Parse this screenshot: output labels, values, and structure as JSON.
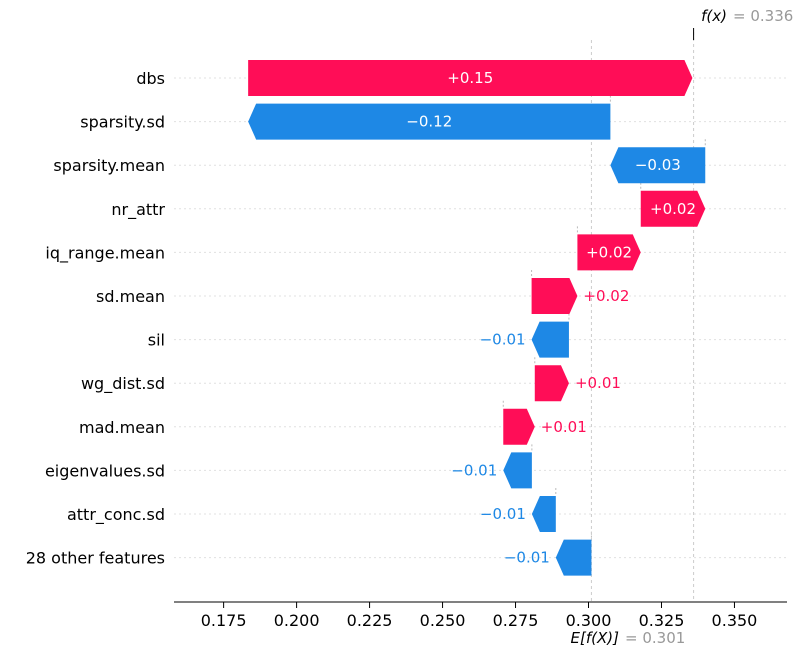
{
  "chart_data": {
    "type": "waterfall",
    "base_value": 0.301,
    "output_value": 0.336,
    "fx_label": "f(x)",
    "fx_value_text": "= 0.336",
    "ex_label": "E[f(X)]",
    "ex_value_text": "= 0.301",
    "xlim": [
      0.158,
      0.368
    ],
    "x_ticks": [
      0.175,
      0.2,
      0.225,
      0.25,
      0.275,
      0.3,
      0.325,
      0.35
    ],
    "x_tick_labels": [
      "0.175",
      "0.200",
      "0.225",
      "0.250",
      "0.275",
      "0.300",
      "0.325",
      "0.350"
    ],
    "features": [
      {
        "name": "dbs",
        "start": 0.1834,
        "end": 0.3356,
        "label": "+0.15"
      },
      {
        "name": "sparsity.sd",
        "start": 0.3075,
        "end": 0.1834,
        "label": "−0.12"
      },
      {
        "name": "sparsity.mean",
        "start": 0.34,
        "end": 0.3075,
        "label": "−0.03"
      },
      {
        "name": "nr_attr",
        "start": 0.3179,
        "end": 0.34,
        "label": "+0.02"
      },
      {
        "name": "iq_range.mean",
        "start": 0.2962,
        "end": 0.3179,
        "label": "+0.02"
      },
      {
        "name": "sd.mean",
        "start": 0.2805,
        "end": 0.2962,
        "label": "+0.02"
      },
      {
        "name": "sil",
        "start": 0.2933,
        "end": 0.2805,
        "label": "−0.01"
      },
      {
        "name": "wg_dist.sd",
        "start": 0.2816,
        "end": 0.2933,
        "label": "+0.01"
      },
      {
        "name": "mad.mean",
        "start": 0.2708,
        "end": 0.2816,
        "label": "+0.01"
      },
      {
        "name": "eigenvalues.sd",
        "start": 0.2806,
        "end": 0.2708,
        "label": "−0.01"
      },
      {
        "name": "attr_conc.sd",
        "start": 0.2888,
        "end": 0.2806,
        "label": "−0.01"
      },
      {
        "name": "28 other features",
        "start": 0.301,
        "end": 0.2888,
        "label": "−0.01"
      }
    ],
    "colors": {
      "positive": "#ff0d57",
      "negative": "#1e88e5",
      "grid": "#cccccc",
      "axis": "#000000",
      "muted": "#999999"
    }
  }
}
